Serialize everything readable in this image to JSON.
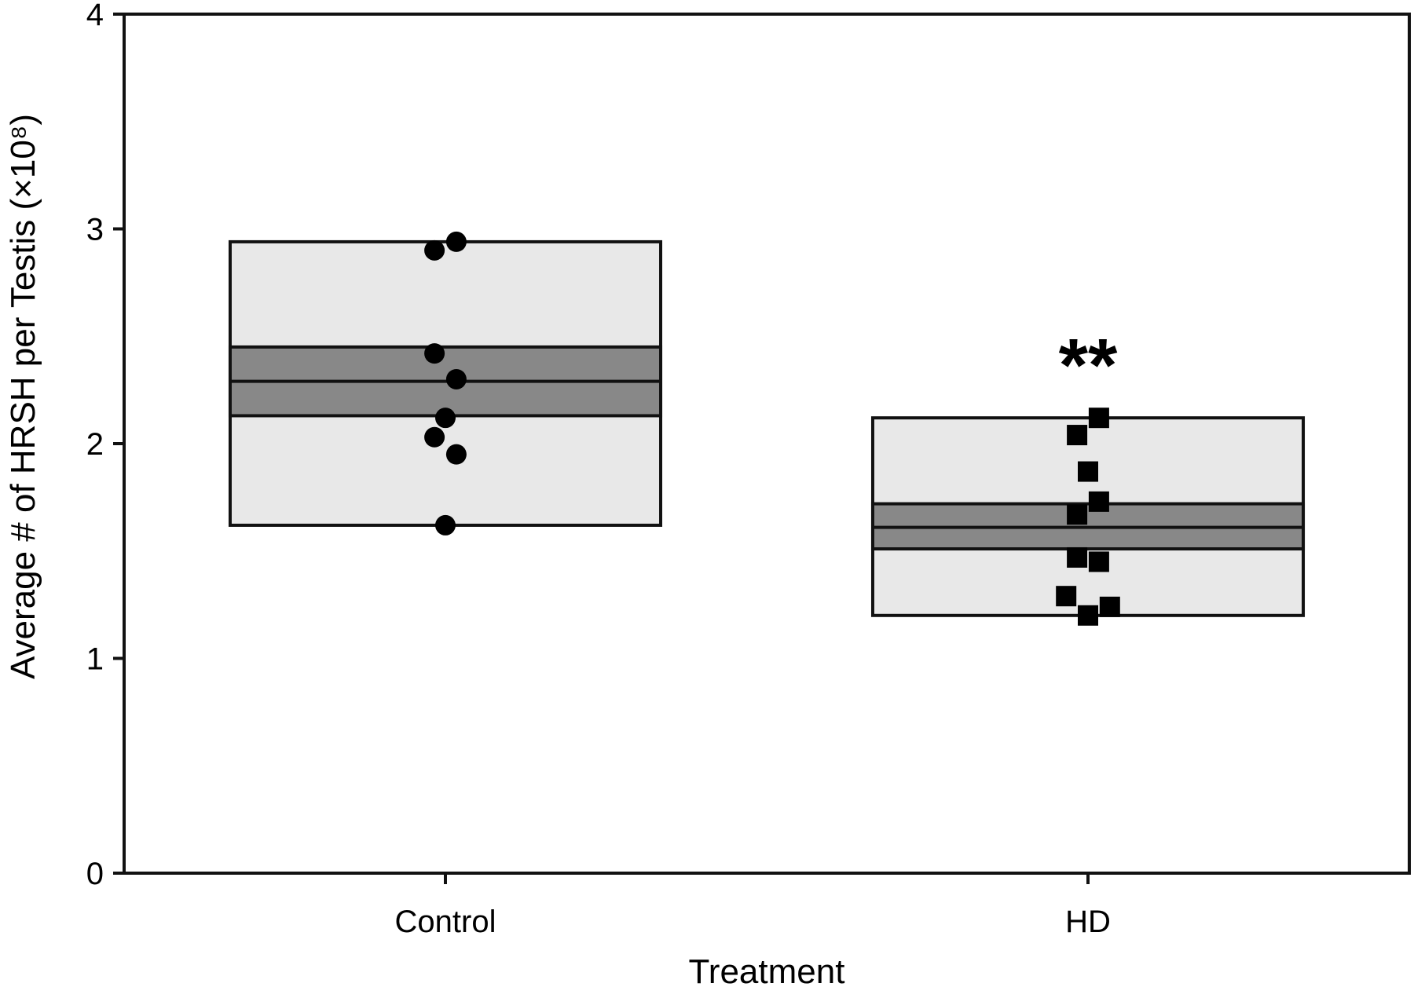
{
  "chart_data": {
    "type": "scatter",
    "title": "",
    "xlabel": "Treatment",
    "ylabel": "Average # of HRSH per Testis (×10⁸)",
    "ylim": [
      0,
      4
    ],
    "yticks": [
      0,
      1,
      2,
      3,
      4
    ],
    "grid": false,
    "categories": [
      "Control",
      "HD"
    ],
    "groups": [
      {
        "category": "Control",
        "marker": "circle",
        "range": [
          1.62,
          2.94
        ],
        "ci": [
          2.13,
          2.45
        ],
        "mean": 2.29,
        "points": [
          {
            "offset": -0.02,
            "y": 2.9
          },
          {
            "offset": 0.02,
            "y": 2.94
          },
          {
            "offset": -0.02,
            "y": 2.42
          },
          {
            "offset": 0.02,
            "y": 2.3
          },
          {
            "offset": 0.0,
            "y": 2.12
          },
          {
            "offset": -0.02,
            "y": 2.03
          },
          {
            "offset": 0.02,
            "y": 1.95
          },
          {
            "offset": 0.0,
            "y": 1.62
          }
        ],
        "annotation": ""
      },
      {
        "category": "HD",
        "marker": "square",
        "range": [
          1.2,
          2.12
        ],
        "ci": [
          1.51,
          1.72
        ],
        "mean": 1.61,
        "points": [
          {
            "offset": 0.02,
            "y": 2.12
          },
          {
            "offset": -0.02,
            "y": 2.04
          },
          {
            "offset": 0.0,
            "y": 1.87
          },
          {
            "offset": 0.02,
            "y": 1.73
          },
          {
            "offset": -0.02,
            "y": 1.67
          },
          {
            "offset": -0.02,
            "y": 1.47
          },
          {
            "offset": 0.02,
            "y": 1.45
          },
          {
            "offset": -0.04,
            "y": 1.29
          },
          {
            "offset": 0.04,
            "y": 1.24
          },
          {
            "offset": 0.0,
            "y": 1.2
          }
        ],
        "annotation": "**"
      }
    ],
    "colors": {
      "range_fill": "#e8e8e8",
      "ci_fill": "#888888",
      "stroke": "#111111",
      "marker": "#000000"
    }
  }
}
